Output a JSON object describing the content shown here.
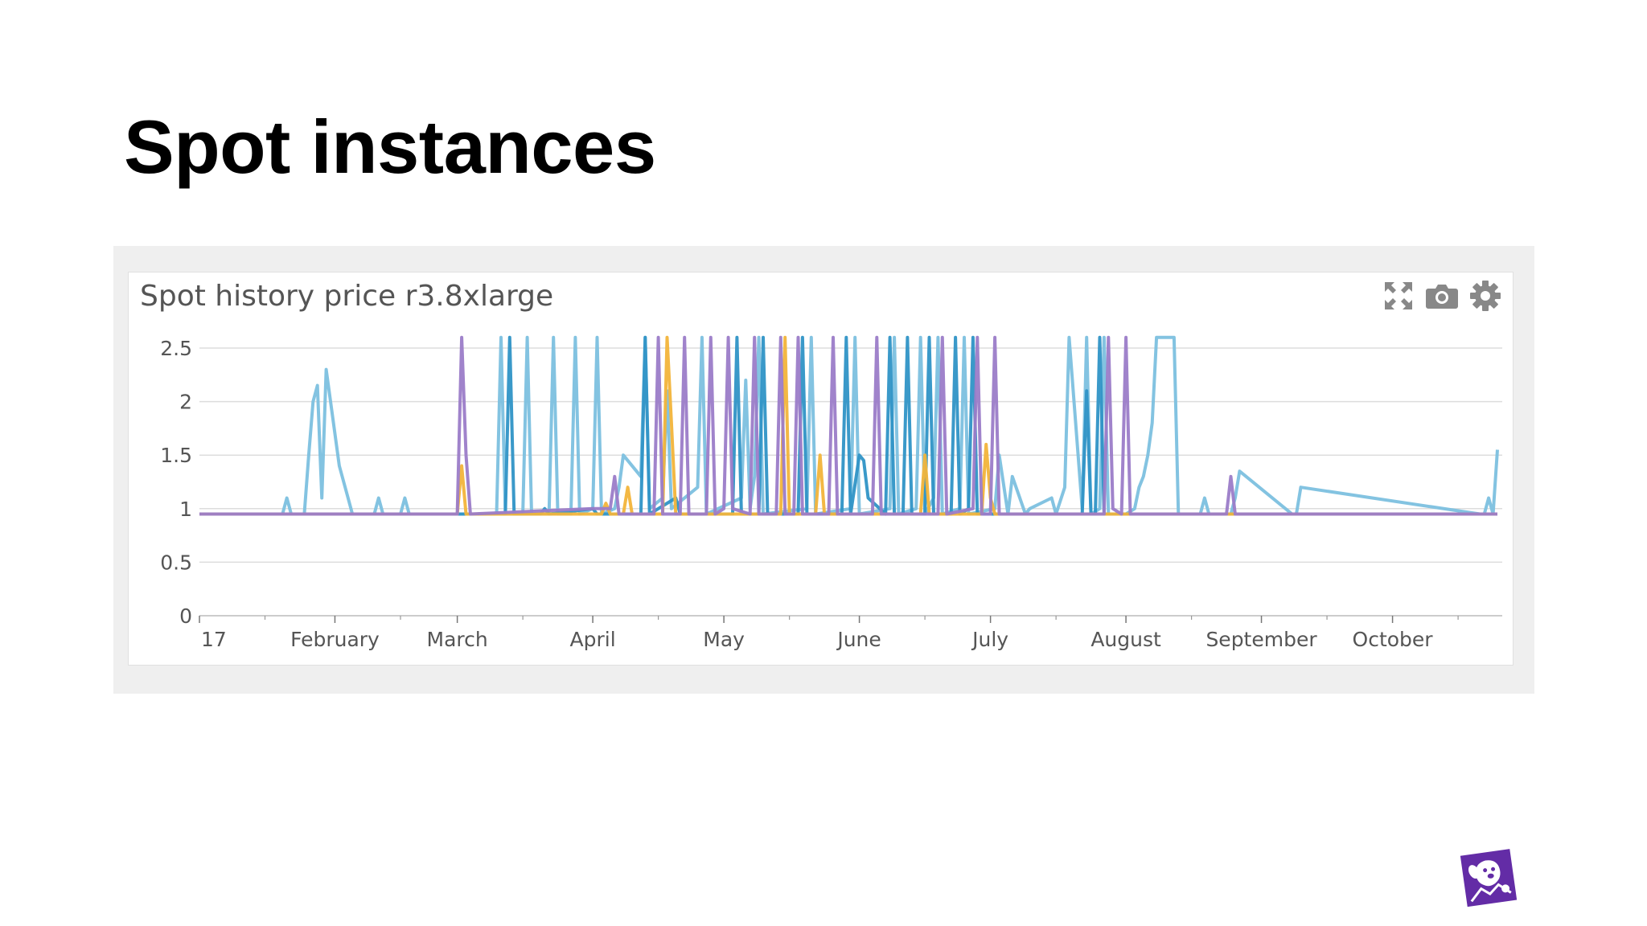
{
  "slide": {
    "title": "Spot instances"
  },
  "widget": {
    "title": "Spot history price r3.8xlarge",
    "tools": [
      {
        "name": "expand-icon"
      },
      {
        "name": "camera-icon"
      },
      {
        "name": "gear-icon"
      }
    ]
  },
  "brand": {
    "name": "datadog-logo"
  },
  "chart_data": {
    "type": "line",
    "title": "Spot history price r3.8xlarge",
    "xlabel": "",
    "ylabel": "",
    "ylim": [
      0,
      2.5
    ],
    "yticks": [
      "0",
      "0.5",
      "1",
      "1.5",
      "2",
      "2.5"
    ],
    "xticks": [
      "17",
      "February",
      "March",
      "April",
      "May",
      "June",
      "July",
      "August",
      "September",
      "October"
    ],
    "xlim": [
      "2017-01-01",
      "2017-10-25"
    ],
    "grid": true,
    "legend": "none",
    "colors": [
      "#7cc0df",
      "#2f93c6",
      "#f2b43a",
      "#9b7cc8"
    ],
    "series": [
      {
        "color": "#7cc0df",
        "x": [
          "2017-01-01",
          "2017-01-20",
          "2017-01-21",
          "2017-01-22",
          "2017-01-25",
          "2017-01-26",
          "2017-01-27",
          "2017-01-28",
          "2017-01-29",
          "2017-01-30",
          "2017-02-02",
          "2017-02-04",
          "2017-02-05",
          "2017-02-06",
          "2017-02-10",
          "2017-02-11",
          "2017-02-12",
          "2017-02-16",
          "2017-02-17",
          "2017-02-18",
          "2017-03-10",
          "2017-03-11",
          "2017-03-12",
          "2017-03-16",
          "2017-03-17",
          "2017-03-18",
          "2017-03-22",
          "2017-03-23",
          "2017-03-24",
          "2017-03-27",
          "2017-03-28",
          "2017-03-29",
          "2017-04-01",
          "2017-04-02",
          "2017-04-03",
          "2017-04-06",
          "2017-04-07",
          "2017-04-08",
          "2017-04-12",
          "2017-04-13",
          "2017-04-14",
          "2017-04-17",
          "2017-04-18",
          "2017-04-19",
          "2017-04-25",
          "2017-04-26",
          "2017-04-27",
          "2017-05-05",
          "2017-05-06",
          "2017-05-07",
          "2017-05-08",
          "2017-05-09",
          "2017-05-10",
          "2017-05-20",
          "2017-05-21",
          "2017-05-22",
          "2017-05-30",
          "2017-05-31",
          "2017-06-01",
          "2017-06-08",
          "2017-06-09",
          "2017-06-10",
          "2017-06-14",
          "2017-06-15",
          "2017-06-16",
          "2017-06-18",
          "2017-06-19",
          "2017-06-20",
          "2017-06-24",
          "2017-06-25",
          "2017-06-26",
          "2017-07-02",
          "2017-07-03",
          "2017-07-05",
          "2017-07-06",
          "2017-07-09",
          "2017-07-10",
          "2017-07-15",
          "2017-07-16",
          "2017-07-18",
          "2017-07-19",
          "2017-07-22",
          "2017-07-23",
          "2017-07-24",
          "2017-07-26",
          "2017-07-27",
          "2017-07-28",
          "2017-08-01",
          "2017-08-03",
          "2017-08-04",
          "2017-08-05",
          "2017-08-06",
          "2017-08-07",
          "2017-08-08",
          "2017-08-12",
          "2017-08-13",
          "2017-08-14",
          "2017-08-15",
          "2017-08-16",
          "2017-08-17",
          "2017-08-18",
          "2017-08-19",
          "2017-08-20",
          "2017-08-25",
          "2017-08-26",
          "2017-08-27",
          "2017-09-08",
          "2017-09-09",
          "2017-09-10",
          "2017-10-21",
          "2017-10-22",
          "2017-10-23",
          "2017-10-24",
          "2017-10-25"
        ],
        "y": [
          0.95,
          0.95,
          1.1,
          0.95,
          0.95,
          1.5,
          2.0,
          2.15,
          1.1,
          2.3,
          1.4,
          1.1,
          0.95,
          0.95,
          0.95,
          1.1,
          0.95,
          0.95,
          1.1,
          0.95,
          0.95,
          2.6,
          0.95,
          0.95,
          2.6,
          0.95,
          0.95,
          2.6,
          0.95,
          0.95,
          2.6,
          0.95,
          1.0,
          2.6,
          0.95,
          1.0,
          1.2,
          1.5,
          1.3,
          2.6,
          1.0,
          1.1,
          2.1,
          1.0,
          1.2,
          2.6,
          0.95,
          1.1,
          2.2,
          1.0,
          1.3,
          2.6,
          0.95,
          1.0,
          2.6,
          0.95,
          1.0,
          2.6,
          0.95,
          1.0,
          2.6,
          0.95,
          1.0,
          2.6,
          0.95,
          1.1,
          2.6,
          0.95,
          1.0,
          2.6,
          0.95,
          1.0,
          1.5,
          0.95,
          1.3,
          0.95,
          1.0,
          1.1,
          0.95,
          1.2,
          2.6,
          1.0,
          2.6,
          0.95,
          1.0,
          2.6,
          0.95,
          0.95,
          1.0,
          1.2,
          1.3,
          1.5,
          1.8,
          2.6,
          2.6,
          0.95,
          0.95,
          0.95,
          0.95,
          0.95,
          0.95,
          1.1,
          0.95,
          0.95,
          1.1,
          1.35,
          0.95,
          0.95,
          1.2,
          0.95,
          0.95,
          1.1,
          0.95,
          1.55
        ]
      },
      {
        "color": "#2f93c6",
        "x": [
          "2017-01-01",
          "2017-03-01",
          "2017-03-12",
          "2017-03-13",
          "2017-03-14",
          "2017-03-20",
          "2017-03-21",
          "2017-03-22",
          "2017-04-01",
          "2017-04-02",
          "2017-04-12",
          "2017-04-13",
          "2017-04-14",
          "2017-04-20",
          "2017-04-21",
          "2017-04-22",
          "2017-05-03",
          "2017-05-04",
          "2017-05-05",
          "2017-05-09",
          "2017-05-10",
          "2017-05-11",
          "2017-05-18",
          "2017-05-19",
          "2017-05-20",
          "2017-05-28",
          "2017-05-29",
          "2017-05-30",
          "2017-06-01",
          "2017-06-02",
          "2017-06-03",
          "2017-06-07",
          "2017-06-08",
          "2017-06-09",
          "2017-06-11",
          "2017-06-12",
          "2017-06-13",
          "2017-06-16",
          "2017-06-17",
          "2017-06-18",
          "2017-06-22",
          "2017-06-23",
          "2017-06-24",
          "2017-06-26",
          "2017-06-27",
          "2017-06-28",
          "2017-07-22",
          "2017-07-23",
          "2017-07-24",
          "2017-07-25",
          "2017-07-26",
          "2017-07-27",
          "2017-10-25"
        ],
        "y": [
          0.95,
          0.95,
          0.95,
          2.6,
          0.95,
          0.95,
          1.0,
          0.95,
          1.0,
          0.95,
          0.95,
          2.6,
          0.95,
          1.1,
          0.95,
          0.95,
          0.95,
          2.6,
          0.95,
          0.95,
          2.6,
          0.95,
          0.95,
          2.6,
          0.95,
          0.95,
          2.6,
          0.95,
          1.5,
          1.45,
          1.1,
          0.95,
          2.6,
          0.95,
          0.95,
          2.6,
          0.95,
          0.95,
          2.6,
          0.95,
          0.95,
          2.6,
          0.95,
          1.0,
          2.6,
          0.95,
          0.95,
          2.1,
          0.95,
          0.95,
          2.6,
          0.95,
          0.95
        ]
      },
      {
        "color": "#f2b43a",
        "x": [
          "2017-01-01",
          "2017-03-01",
          "2017-03-02",
          "2017-03-03",
          "2017-04-03",
          "2017-04-04",
          "2017-04-05",
          "2017-04-08",
          "2017-04-09",
          "2017-04-10",
          "2017-04-17",
          "2017-04-18",
          "2017-04-19",
          "2017-04-20",
          "2017-05-14",
          "2017-05-15",
          "2017-05-16",
          "2017-05-22",
          "2017-05-23",
          "2017-05-24",
          "2017-06-15",
          "2017-06-16",
          "2017-06-17",
          "2017-06-29",
          "2017-06-30",
          "2017-07-01",
          "2017-07-02",
          "2017-10-25"
        ],
        "y": [
          0.95,
          0.95,
          1.4,
          0.95,
          0.95,
          1.05,
          0.95,
          0.95,
          1.2,
          0.95,
          0.95,
          2.6,
          1.8,
          0.95,
          0.95,
          2.6,
          0.95,
          0.95,
          1.5,
          0.95,
          0.95,
          1.5,
          0.95,
          0.95,
          1.6,
          1.1,
          0.95,
          0.95
        ]
      },
      {
        "color": "#9b7cc8",
        "x": [
          "2017-01-01",
          "2017-03-01",
          "2017-03-02",
          "2017-03-03",
          "2017-03-04",
          "2017-04-01",
          "2017-04-05",
          "2017-04-06",
          "2017-04-07",
          "2017-04-15",
          "2017-04-16",
          "2017-04-17",
          "2017-04-21",
          "2017-04-22",
          "2017-04-23",
          "2017-04-27",
          "2017-04-28",
          "2017-04-29",
          "2017-05-01",
          "2017-05-02",
          "2017-05-03",
          "2017-05-07",
          "2017-05-08",
          "2017-05-09",
          "2017-05-13",
          "2017-05-14",
          "2017-05-15",
          "2017-05-17",
          "2017-05-18",
          "2017-05-19",
          "2017-05-25",
          "2017-05-26",
          "2017-05-27",
          "2017-06-04",
          "2017-06-05",
          "2017-06-06",
          "2017-06-19",
          "2017-06-20",
          "2017-06-21",
          "2017-06-27",
          "2017-06-28",
          "2017-06-29",
          "2017-07-01",
          "2017-07-02",
          "2017-07-03",
          "2017-07-27",
          "2017-07-28",
          "2017-07-29",
          "2017-07-31",
          "2017-08-01",
          "2017-08-02",
          "2017-08-24",
          "2017-08-25",
          "2017-08-26",
          "2017-10-25"
        ],
        "y": [
          0.95,
          0.95,
          2.6,
          1.5,
          0.95,
          1.0,
          1.0,
          1.3,
          0.95,
          0.95,
          2.6,
          0.95,
          0.95,
          2.6,
          0.95,
          0.95,
          2.6,
          0.95,
          1.0,
          2.6,
          1.0,
          0.95,
          2.6,
          0.95,
          0.95,
          2.6,
          0.95,
          0.95,
          2.6,
          0.95,
          0.95,
          2.6,
          0.95,
          0.95,
          2.6,
          0.95,
          0.95,
          2.6,
          0.95,
          1.0,
          2.6,
          0.95,
          0.95,
          2.6,
          0.95,
          0.95,
          2.6,
          1.0,
          0.95,
          2.6,
          0.95,
          0.95,
          1.3,
          0.95,
          0.95
        ]
      }
    ]
  }
}
